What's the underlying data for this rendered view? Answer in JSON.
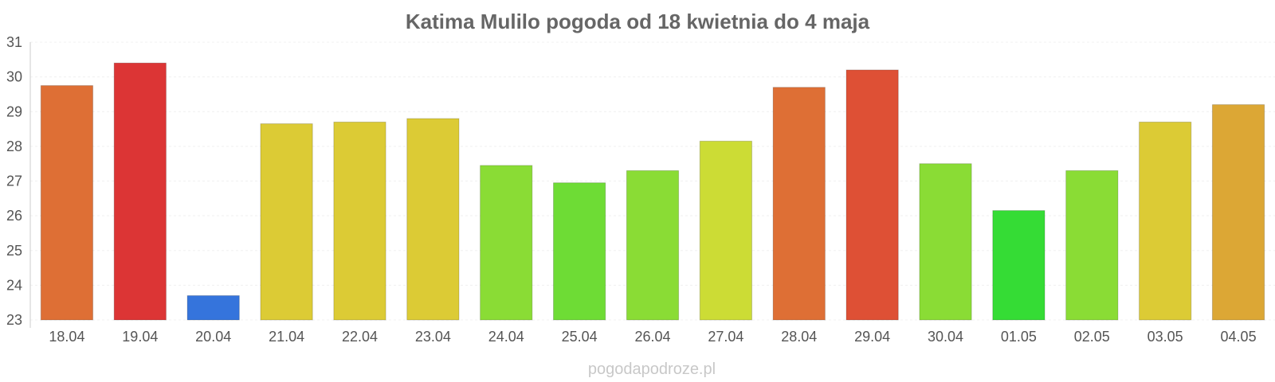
{
  "chart_data": {
    "type": "bar",
    "title": "Katima Mulilo pogoda od 18 kwietnia do 4 maja",
    "xlabel": "",
    "ylabel": "",
    "ylim": [
      23,
      31
    ],
    "yticks": [
      23,
      24,
      25,
      26,
      27,
      28,
      29,
      30,
      31
    ],
    "grid": true,
    "legend": "none",
    "categories": [
      "18.04",
      "19.04",
      "20.04",
      "21.04",
      "22.04",
      "23.04",
      "24.04",
      "25.04",
      "26.04",
      "27.04",
      "28.04",
      "29.04",
      "30.04",
      "01.05",
      "02.05",
      "03.05",
      "04.05"
    ],
    "values": [
      29.75,
      30.4,
      23.7,
      28.65,
      28.7,
      28.8,
      27.45,
      26.95,
      27.3,
      28.15,
      29.7,
      30.2,
      27.5,
      26.15,
      27.3,
      28.7,
      29.2
    ],
    "colors": [
      "#de6f35",
      "#dc3535",
      "#3574dc",
      "#dccb35",
      "#dccb35",
      "#dccb35",
      "#8adc35",
      "#6edc35",
      "#8adc35",
      "#ccdc35",
      "#de6f35",
      "#de5035",
      "#8adc35",
      "#35dc35",
      "#8adc35",
      "#dccb35",
      "#dca735"
    ]
  },
  "watermark": "pogodapodroze.pl"
}
